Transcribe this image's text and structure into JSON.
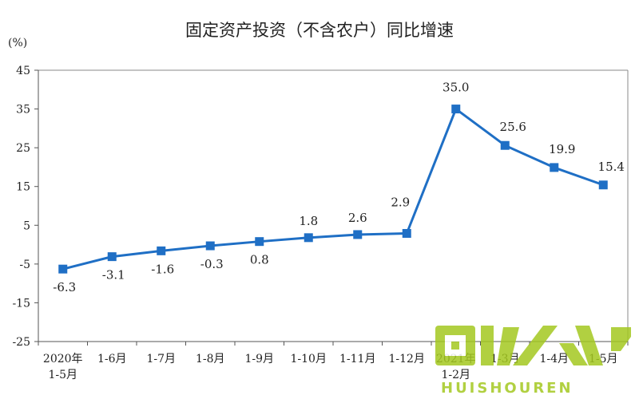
{
  "chart_data": {
    "type": "line",
    "title": "固定资产投资（不含农户）同比增速",
    "ylabel": "(%)",
    "ylim": [
      -25,
      45
    ],
    "yticks": [
      -25,
      -15,
      -5,
      5,
      15,
      25,
      35,
      45
    ],
    "categories": [
      "2020年\n1-5月",
      "1-6月",
      "1-7月",
      "1-8月",
      "1-9月",
      "1-10月",
      "1-11月",
      "1-12月",
      "2021年\n1-2月",
      "1-3月",
      "1-4月",
      "1-5月"
    ],
    "series": [
      {
        "values": [
          -6.3,
          -3.1,
          -1.6,
          -0.3,
          0.8,
          1.8,
          2.6,
          2.9,
          35.0,
          25.6,
          19.9,
          15.4
        ],
        "labels": [
          "-6.3",
          "-3.1",
          "-1.6",
          "-0.3",
          "0.8",
          "1.8",
          "2.6",
          "2.9",
          "35.0",
          "25.6",
          "19.9",
          "15.4"
        ],
        "color": "#1f6fc5"
      }
    ],
    "grid": false
  },
  "watermark": {
    "text": "回收人",
    "subtext": "HUISHOUREN",
    "color": "#a4c820"
  }
}
